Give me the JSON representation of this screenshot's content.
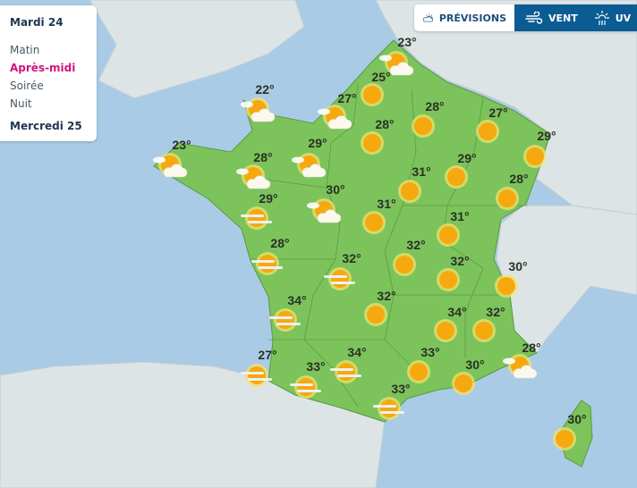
{
  "panel": {
    "day1": "Mardi 24",
    "slots": [
      "Matin",
      "Après-midi",
      "Soirée",
      "Nuit"
    ],
    "active_slot": "Après-midi",
    "day2": "Mercredi 25"
  },
  "tabs": [
    {
      "label": "PRÉVISIONS",
      "icon": "sun-cloud-icon",
      "active": true
    },
    {
      "label": "VENT",
      "icon": "wind-icon",
      "active": false
    },
    {
      "label": "UV",
      "icon": "uv-icon",
      "active": false
    }
  ],
  "colors": {
    "accent": "#d3127e",
    "tab_dark": "#0b5c93",
    "land": "#7cc35b",
    "sea": "#a9cbe6"
  },
  "stations": [
    {
      "temp": "23°",
      "icon": "sun-cloud"
    },
    {
      "temp": "25°",
      "icon": "sun"
    },
    {
      "temp": "22°",
      "icon": "sun-cloud"
    },
    {
      "temp": "27°",
      "icon": "sun-cloud"
    },
    {
      "temp": "28°",
      "icon": "sun"
    },
    {
      "temp": "27°",
      "icon": "sun"
    },
    {
      "temp": "28°",
      "icon": "sun"
    },
    {
      "temp": "29°",
      "icon": "sun"
    },
    {
      "temp": "23°",
      "icon": "sun-cloud"
    },
    {
      "temp": "29°",
      "icon": "sun-cloud"
    },
    {
      "temp": "28°",
      "icon": "sun-cloud"
    },
    {
      "temp": "29°",
      "icon": "sun"
    },
    {
      "temp": "31°",
      "icon": "sun"
    },
    {
      "temp": "28°",
      "icon": "sun"
    },
    {
      "temp": "29°",
      "icon": "sun-fog"
    },
    {
      "temp": "30°",
      "icon": "sun-cloud"
    },
    {
      "temp": "31°",
      "icon": "sun"
    },
    {
      "temp": "31°",
      "icon": "sun"
    },
    {
      "temp": "28°",
      "icon": "sun-fog"
    },
    {
      "temp": "32°",
      "icon": "sun"
    },
    {
      "temp": "32°",
      "icon": "sun-fog"
    },
    {
      "temp": "32°",
      "icon": "sun"
    },
    {
      "temp": "30°",
      "icon": "sun"
    },
    {
      "temp": "34°",
      "icon": "sun-fog"
    },
    {
      "temp": "32°",
      "icon": "sun"
    },
    {
      "temp": "34°",
      "icon": "sun"
    },
    {
      "temp": "32°",
      "icon": "sun"
    },
    {
      "temp": "27°",
      "icon": "sun-fog"
    },
    {
      "temp": "34°",
      "icon": "sun-fog"
    },
    {
      "temp": "33°",
      "icon": "sun"
    },
    {
      "temp": "30°",
      "icon": "sun"
    },
    {
      "temp": "28°",
      "icon": "sun-cloud"
    },
    {
      "temp": "33°",
      "icon": "sun-fog"
    },
    {
      "temp": "33°",
      "icon": "sun-fog"
    },
    {
      "temp": "30°",
      "icon": "sun"
    }
  ]
}
